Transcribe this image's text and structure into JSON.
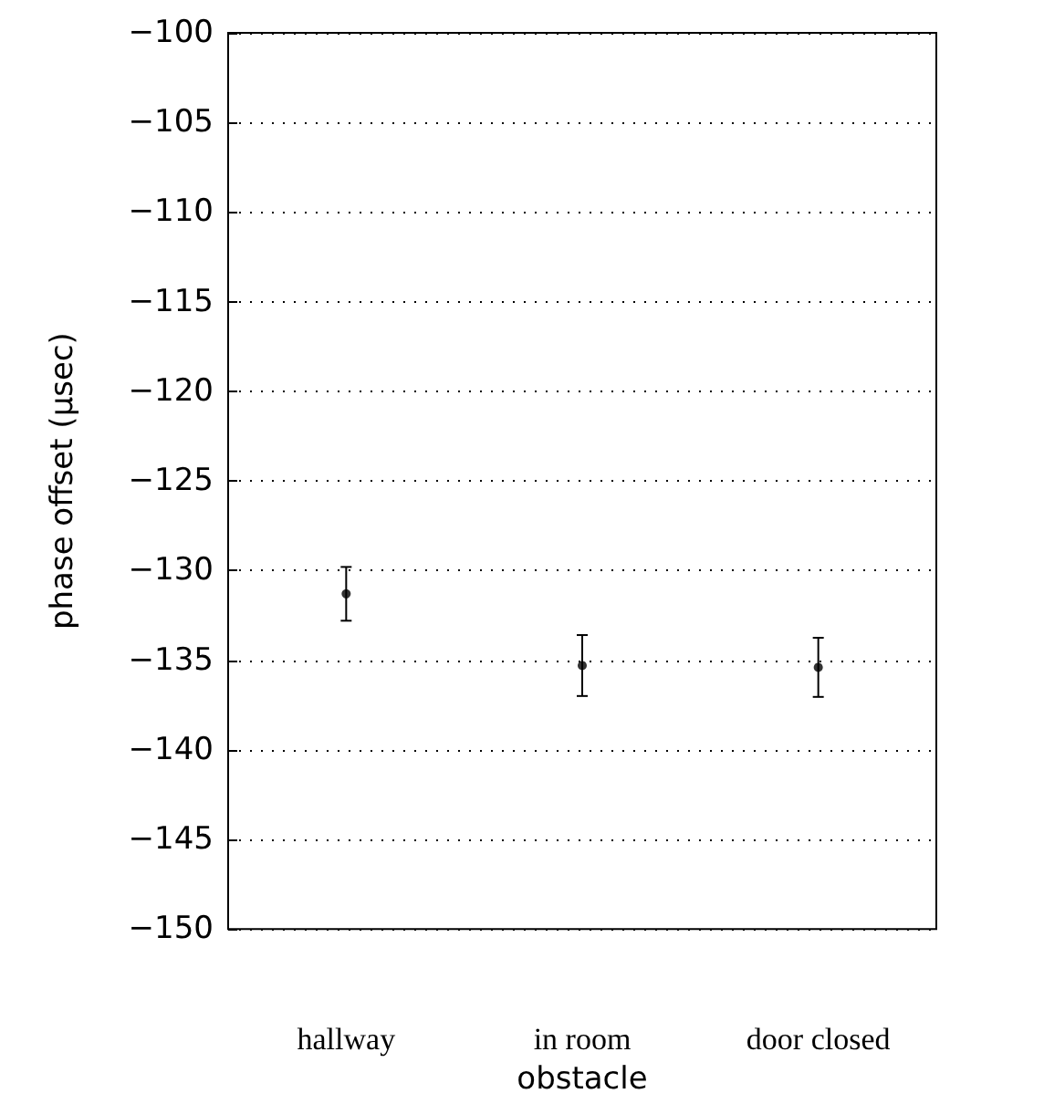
{
  "chart_data": {
    "type": "scatter",
    "xlabel": "obstacle",
    "ylabel": "phase offset (µsec)",
    "categories": [
      "hallway",
      "in room",
      "door closed"
    ],
    "values": [
      -131.3,
      -135.3,
      -135.4
    ],
    "errors": [
      1.5,
      1.7,
      1.65
    ],
    "color": "#000000",
    "marker": "circle",
    "ylim": [
      -150,
      -100
    ],
    "yticks": [
      {
        "value": -150,
        "label": "−150"
      },
      {
        "value": -145,
        "label": "−145"
      },
      {
        "value": -140,
        "label": "−140"
      },
      {
        "value": -135,
        "label": "−135"
      },
      {
        "value": -130,
        "label": "−130"
      },
      {
        "value": -125,
        "label": "−125"
      },
      {
        "value": -120,
        "label": "−120"
      },
      {
        "value": -115,
        "label": "−115"
      },
      {
        "value": -110,
        "label": "−110"
      },
      {
        "value": -105,
        "label": "−105"
      },
      {
        "value": -100,
        "label": "−100"
      }
    ],
    "grid": "y"
  }
}
